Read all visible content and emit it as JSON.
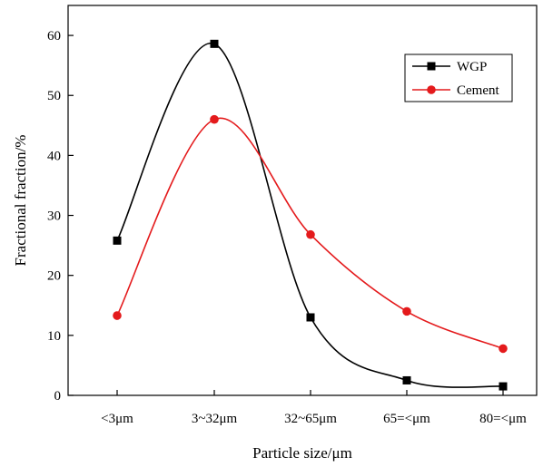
{
  "chart_data": {
    "type": "line",
    "title": "",
    "xlabel": "Particle size/μm",
    "ylabel": "Fractional fraction/%",
    "categories": [
      "<3μm",
      "3~32μm",
      "32~65μm",
      "65=<μm",
      "80=<μm"
    ],
    "ylim": [
      0,
      65
    ],
    "yticks": [
      0,
      10,
      20,
      30,
      40,
      50,
      60
    ],
    "ytick_labels": [
      "0",
      "10",
      "20",
      "30",
      "40",
      "50",
      "60"
    ],
    "grid": false,
    "legend_position": "top-right",
    "smooth": true,
    "series": [
      {
        "name": "WGP",
        "marker": "square",
        "color": "#000000",
        "values": [
          25.8,
          58.6,
          13.0,
          2.5,
          1.5
        ]
      },
      {
        "name": "Cement",
        "marker": "circle",
        "color": "#e41a1c",
        "values": [
          13.3,
          46.0,
          26.8,
          14.0,
          7.8
        ]
      }
    ]
  }
}
